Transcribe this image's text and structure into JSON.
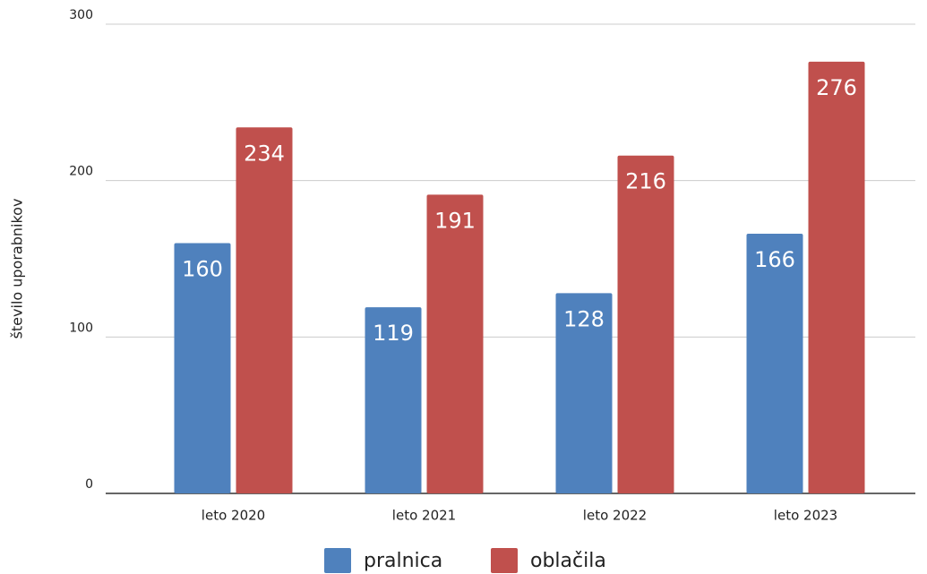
{
  "chart_data": {
    "type": "bar",
    "y_label": "število uporabnikov",
    "categories": [
      "leto 2020",
      "leto 2021",
      "leto 2022",
      "leto 2023"
    ],
    "series": [
      {
        "name": "pralnica",
        "color": "#4f81bd",
        "values": [
          160,
          119,
          128,
          166
        ]
      },
      {
        "name": "oblačila",
        "color": "#c0504d",
        "values": [
          234,
          191,
          216,
          276
        ]
      }
    ],
    "ylim": [
      0,
      300
    ],
    "yticks": [
      0,
      100,
      200,
      300
    ],
    "grid": true,
    "legend": "bottom"
  }
}
